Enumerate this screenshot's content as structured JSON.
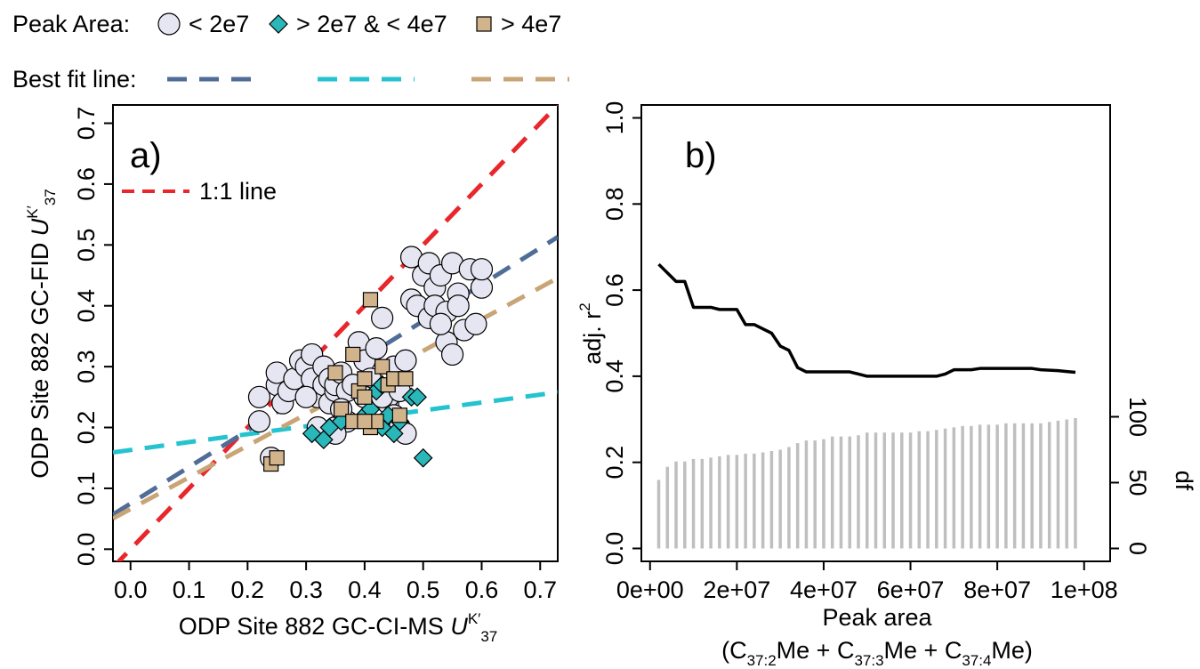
{
  "legend": {
    "peak_area_title": "Peak Area:",
    "peak_area_items": [
      "< 2e7",
      "> 2e7 & < 4e7",
      "> 4e7"
    ],
    "best_fit_title": "Best fit line:",
    "fill_colors": [
      "#e6e6f2",
      "#2ab7b9",
      "#d2b48c"
    ],
    "line_colors": [
      "#4f6d96",
      "#24c3cf",
      "#c9a476"
    ]
  },
  "chart_data": [
    {
      "type": "scatter",
      "panel_label": "a)",
      "xlabel_prefix": "ODP Site 882 GC-CI-MS ",
      "ylabel_prefix": "ODP Site 882 GC-FID ",
      "axis_symbol": "U",
      "axis_superscript": "K′",
      "axis_subscript": "37",
      "xlim": [
        -0.03,
        0.73
      ],
      "ylim": [
        -0.02,
        0.73
      ],
      "xticks": [
        "0.0",
        "0.1",
        "0.2",
        "0.3",
        "0.4",
        "0.5",
        "0.6",
        "0.7"
      ],
      "yticks": [
        "0.0",
        "0.1",
        "0.2",
        "0.3",
        "0.4",
        "0.5",
        "0.6",
        "0.7"
      ],
      "reference_line": {
        "name": "1:1 line",
        "slope": 1,
        "intercept": 0,
        "color": "#e8262b"
      },
      "series": [
        {
          "name": "< 2e7",
          "marker": "circle",
          "fit": {
            "slope": 0.6,
            "intercept": 0.075
          },
          "points": [
            [
              0.22,
              0.25
            ],
            [
              0.22,
              0.21
            ],
            [
              0.24,
              0.15
            ],
            [
              0.25,
              0.27
            ],
            [
              0.25,
              0.29
            ],
            [
              0.26,
              0.24
            ],
            [
              0.27,
              0.26
            ],
            [
              0.28,
              0.28
            ],
            [
              0.29,
              0.31
            ],
            [
              0.3,
              0.3
            ],
            [
              0.31,
              0.32
            ],
            [
              0.31,
              0.28
            ],
            [
              0.32,
              0.25
            ],
            [
              0.32,
              0.2
            ],
            [
              0.33,
              0.27
            ],
            [
              0.33,
              0.3
            ],
            [
              0.34,
              0.28
            ],
            [
              0.34,
              0.24
            ],
            [
              0.35,
              0.26
            ],
            [
              0.35,
              0.2
            ],
            [
              0.35,
              0.27
            ],
            [
              0.36,
              0.29
            ],
            [
              0.37,
              0.26
            ],
            [
              0.37,
              0.21
            ],
            [
              0.38,
              0.27
            ],
            [
              0.39,
              0.34
            ],
            [
              0.4,
              0.31
            ],
            [
              0.41,
              0.28
            ],
            [
              0.42,
              0.33
            ],
            [
              0.43,
              0.38
            ],
            [
              0.44,
              0.24
            ],
            [
              0.44,
              0.25
            ],
            [
              0.45,
              0.22
            ],
            [
              0.45,
              0.3
            ],
            [
              0.46,
              0.2
            ],
            [
              0.47,
              0.31
            ],
            [
              0.47,
              0.19
            ],
            [
              0.48,
              0.41
            ],
            [
              0.48,
              0.48
            ],
            [
              0.49,
              0.4
            ],
            [
              0.5,
              0.45
            ],
            [
              0.51,
              0.47
            ],
            [
              0.51,
              0.38
            ],
            [
              0.52,
              0.43
            ],
            [
              0.52,
              0.4
            ],
            [
              0.53,
              0.45
            ],
            [
              0.54,
              0.39
            ],
            [
              0.54,
              0.34
            ],
            [
              0.55,
              0.47
            ],
            [
              0.55,
              0.32
            ],
            [
              0.56,
              0.42
            ],
            [
              0.57,
              0.36
            ],
            [
              0.58,
              0.46
            ],
            [
              0.59,
              0.37
            ],
            [
              0.6,
              0.43
            ],
            [
              0.6,
              0.46
            ],
            [
              0.35,
              0.19
            ],
            [
              0.36,
              0.23
            ],
            [
              0.3,
              0.25
            ],
            [
              0.4,
              0.25
            ],
            [
              0.43,
              0.25
            ],
            [
              0.46,
              0.26
            ],
            [
              0.53,
              0.37
            ],
            [
              0.56,
              0.4
            ]
          ]
        },
        {
          "name": "> 2e7 & < 4e7",
          "marker": "diamond",
          "fit": {
            "slope": 0.13,
            "intercept": 0.163
          },
          "points": [
            [
              0.31,
              0.19
            ],
            [
              0.33,
              0.18
            ],
            [
              0.34,
              0.2
            ],
            [
              0.36,
              0.21
            ],
            [
              0.4,
              0.22
            ],
            [
              0.41,
              0.23
            ],
            [
              0.42,
              0.26
            ],
            [
              0.43,
              0.2
            ],
            [
              0.44,
              0.22
            ],
            [
              0.45,
              0.19
            ],
            [
              0.46,
              0.21
            ],
            [
              0.48,
              0.25
            ],
            [
              0.49,
              0.25
            ],
            [
              0.5,
              0.15
            ],
            [
              0.43,
              0.27
            ]
          ]
        },
        {
          "name": "> 4e7",
          "marker": "square",
          "fit": {
            "slope": 0.52,
            "intercept": 0.066
          },
          "points": [
            [
              0.24,
              0.14
            ],
            [
              0.25,
              0.15
            ],
            [
              0.35,
              0.29
            ],
            [
              0.36,
              0.23
            ],
            [
              0.38,
              0.21
            ],
            [
              0.38,
              0.32
            ],
            [
              0.39,
              0.26
            ],
            [
              0.4,
              0.25
            ],
            [
              0.4,
              0.28
            ],
            [
              0.41,
              0.2
            ],
            [
              0.41,
              0.41
            ],
            [
              0.42,
              0.21
            ],
            [
              0.43,
              0.3
            ],
            [
              0.44,
              0.27
            ],
            [
              0.45,
              0.28
            ],
            [
              0.46,
              0.22
            ],
            [
              0.47,
              0.28
            ],
            [
              0.4,
              0.21
            ]
          ]
        }
      ]
    },
    {
      "type": "line",
      "panel_label": "b)",
      "xlabel": "Peak area",
      "xlabel2_parts": [
        "(C",
        "37:2",
        "Me + C",
        "37:3",
        "Me + C",
        "37:4",
        "Me)"
      ],
      "ylabel": "adj. r",
      "ylabel_sup": "2",
      "ylabel_right": "df",
      "xlim": [
        -2000000,
        106000000
      ],
      "ylim": [
        -0.03,
        1.03
      ],
      "xticks": [
        {
          "value": 0,
          "label": "0e+00"
        },
        {
          "value": 20000000,
          "label": "2e+07"
        },
        {
          "value": 40000000,
          "label": "4e+07"
        },
        {
          "value": 60000000,
          "label": "6e+07"
        },
        {
          "value": 80000000,
          "label": "8e+07"
        },
        {
          "value": 100000000,
          "label": "1e+08"
        }
      ],
      "yticks": [
        "0.0",
        "0.2",
        "0.4",
        "0.6",
        "0.8",
        "1.0"
      ],
      "right_ticks": [
        {
          "value": 0,
          "label": "0"
        },
        {
          "value": 50,
          "label": "50"
        },
        {
          "value": 100,
          "label": "100"
        }
      ],
      "right_scale_df_per_r2": 327,
      "r2_series": {
        "name": "adj. r2",
        "color": "#000000",
        "x": [
          2000000,
          4000000,
          6000000,
          8000000,
          10000000,
          12000000,
          14000000,
          16000000,
          18000000,
          20000000,
          22000000,
          24000000,
          26000000,
          28000000,
          30000000,
          32000000,
          34000000,
          36000000,
          38000000,
          40000000,
          42000000,
          44000000,
          46000000,
          48000000,
          50000000,
          52000000,
          54000000,
          56000000,
          58000000,
          60000000,
          62000000,
          64000000,
          66000000,
          68000000,
          70000000,
          72000000,
          74000000,
          76000000,
          78000000,
          80000000,
          82000000,
          84000000,
          86000000,
          88000000,
          90000000,
          92000000,
          94000000,
          96000000,
          98000000
        ],
        "y": [
          0.66,
          0.64,
          0.62,
          0.62,
          0.56,
          0.56,
          0.56,
          0.555,
          0.555,
          0.555,
          0.52,
          0.52,
          0.51,
          0.5,
          0.47,
          0.46,
          0.42,
          0.41,
          0.41,
          0.41,
          0.41,
          0.41,
          0.41,
          0.405,
          0.4,
          0.4,
          0.4,
          0.4,
          0.4,
          0.4,
          0.4,
          0.4,
          0.4,
          0.405,
          0.415,
          0.415,
          0.415,
          0.418,
          0.418,
          0.418,
          0.418,
          0.418,
          0.418,
          0.418,
          0.415,
          0.414,
          0.413,
          0.411,
          0.409
        ]
      },
      "df_series": {
        "name": "df",
        "color": "#bfbfbf",
        "x": [
          2000000,
          4000000,
          6000000,
          8000000,
          10000000,
          12000000,
          14000000,
          16000000,
          18000000,
          20000000,
          22000000,
          24000000,
          26000000,
          28000000,
          30000000,
          32000000,
          34000000,
          36000000,
          38000000,
          40000000,
          42000000,
          44000000,
          46000000,
          48000000,
          50000000,
          52000000,
          54000000,
          56000000,
          58000000,
          60000000,
          62000000,
          64000000,
          66000000,
          68000000,
          70000000,
          72000000,
          74000000,
          76000000,
          78000000,
          80000000,
          82000000,
          84000000,
          86000000,
          88000000,
          90000000,
          92000000,
          94000000,
          96000000,
          98000000
        ],
        "y": [
          52,
          62,
          66,
          66,
          68,
          68,
          69,
          70,
          71,
          71,
          72,
          72,
          73,
          74,
          75,
          77,
          80,
          82,
          82,
          83,
          85,
          85,
          85,
          86,
          88,
          88,
          88,
          88,
          88,
          88,
          89,
          89,
          90,
          91,
          92,
          93,
          93,
          94,
          94,
          94,
          95,
          95,
          95,
          95,
          95,
          96,
          97,
          98,
          99
        ]
      }
    }
  ]
}
